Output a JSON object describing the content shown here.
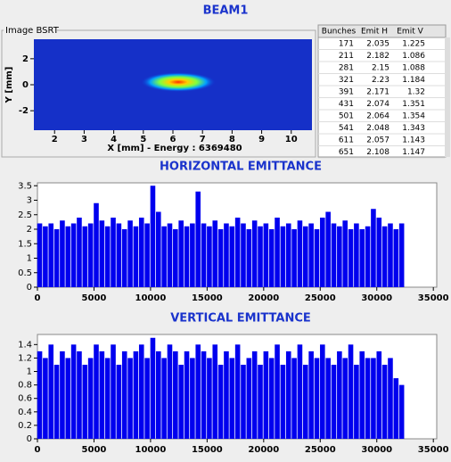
{
  "title": "BEAM1",
  "image_panel": {
    "title": "Image BSRT",
    "x_label": "X [mm] - Energy : 6369480",
    "y_label": "Y [mm]",
    "xlim": [
      1.3,
      10.7
    ],
    "ylim": [
      -3.5,
      3.5
    ],
    "xticks": [
      2,
      3,
      4,
      5,
      6,
      7,
      8,
      9,
      10
    ],
    "yticks": [
      2,
      0,
      -2
    ]
  },
  "table": {
    "columns": [
      "Bunches",
      "Emit H",
      "Emit V"
    ],
    "rows": [
      [
        "171",
        "2.035",
        "1.225"
      ],
      [
        "211",
        "2.182",
        "1.086"
      ],
      [
        "281",
        "2.15",
        "1.088"
      ],
      [
        "321",
        "2.23",
        "1.184"
      ],
      [
        "391",
        "2.171",
        "1.32"
      ],
      [
        "431",
        "2.074",
        "1.351"
      ],
      [
        "501",
        "2.064",
        "1.354"
      ],
      [
        "541",
        "2.048",
        "1.343"
      ],
      [
        "611",
        "2.057",
        "1.143"
      ],
      [
        "651",
        "2.108",
        "1.147"
      ]
    ]
  },
  "chart_data": [
    {
      "type": "bar",
      "title": "HORIZONTAL EMITTANCE",
      "color": "#0000ee",
      "x": [
        200,
        700,
        1200,
        1700,
        2200,
        2700,
        3200,
        3700,
        4200,
        4700,
        5200,
        5700,
        6200,
        6700,
        7200,
        7700,
        8200,
        8700,
        9200,
        9700,
        10200,
        10700,
        11200,
        11700,
        12200,
        12700,
        13200,
        13700,
        14200,
        14700,
        15200,
        15700,
        16200,
        16700,
        17200,
        17700,
        18200,
        18700,
        19200,
        19700,
        20200,
        20700,
        21200,
        21700,
        22200,
        22700,
        23200,
        23700,
        24200,
        24700,
        25200,
        25700,
        26200,
        26700,
        27200,
        27700,
        28200,
        28700,
        29200,
        29700,
        30200,
        30700,
        31200,
        31700,
        32200
      ],
      "values": [
        2.2,
        2.1,
        2.2,
        2.0,
        2.3,
        2.1,
        2.2,
        2.4,
        2.1,
        2.2,
        2.9,
        2.3,
        2.1,
        2.4,
        2.2,
        2.0,
        2.3,
        2.1,
        2.4,
        2.2,
        3.5,
        2.6,
        2.1,
        2.2,
        2.0,
        2.3,
        2.1,
        2.2,
        3.3,
        2.2,
        2.1,
        2.3,
        2.0,
        2.2,
        2.1,
        2.4,
        2.2,
        2.0,
        2.3,
        2.1,
        2.2,
        2.0,
        2.4,
        2.1,
        2.2,
        2.0,
        2.3,
        2.1,
        2.2,
        2.0,
        2.4,
        2.6,
        2.2,
        2.1,
        2.3,
        2.0,
        2.2,
        2.0,
        2.1,
        2.7,
        2.4,
        2.1,
        2.2,
        2.0,
        2.2
      ],
      "xlim": [
        0,
        35300
      ],
      "xticks": [
        0,
        5000,
        10000,
        15000,
        20000,
        25000,
        30000,
        35000
      ],
      "ylim": [
        0,
        3.6
      ],
      "yticks": [
        0,
        0.5,
        1,
        1.5,
        2,
        2.5,
        3,
        3.5
      ]
    },
    {
      "type": "bar",
      "title": "VERTICAL EMITTANCE",
      "color": "#0000ee",
      "x": [
        200,
        700,
        1200,
        1700,
        2200,
        2700,
        3200,
        3700,
        4200,
        4700,
        5200,
        5700,
        6200,
        6700,
        7200,
        7700,
        8200,
        8700,
        9200,
        9700,
        10200,
        10700,
        11200,
        11700,
        12200,
        12700,
        13200,
        13700,
        14200,
        14700,
        15200,
        15700,
        16200,
        16700,
        17200,
        17700,
        18200,
        18700,
        19200,
        19700,
        20200,
        20700,
        21200,
        21700,
        22200,
        22700,
        23200,
        23700,
        24200,
        24700,
        25200,
        25700,
        26200,
        26700,
        27200,
        27700,
        28200,
        28700,
        29200,
        29700,
        30200,
        30700,
        31200,
        31700,
        32200
      ],
      "values": [
        1.3,
        1.2,
        1.4,
        1.1,
        1.3,
        1.2,
        1.4,
        1.3,
        1.1,
        1.2,
        1.4,
        1.3,
        1.2,
        1.4,
        1.1,
        1.3,
        1.2,
        1.3,
        1.4,
        1.2,
        1.5,
        1.3,
        1.2,
        1.4,
        1.3,
        1.1,
        1.3,
        1.2,
        1.4,
        1.3,
        1.2,
        1.4,
        1.1,
        1.3,
        1.2,
        1.4,
        1.1,
        1.2,
        1.3,
        1.1,
        1.3,
        1.2,
        1.4,
        1.1,
        1.3,
        1.2,
        1.4,
        1.1,
        1.3,
        1.2,
        1.4,
        1.2,
        1.1,
        1.3,
        1.2,
        1.4,
        1.1,
        1.3,
        1.2,
        1.2,
        1.3,
        1.1,
        1.2,
        0.9,
        0.8
      ],
      "xlim": [
        0,
        35300
      ],
      "xticks": [
        0,
        5000,
        10000,
        15000,
        20000,
        25000,
        30000,
        35000
      ],
      "ylim": [
        0,
        1.55
      ],
      "yticks": [
        0,
        0.2,
        0.4,
        0.6,
        0.8,
        1,
        1.2,
        1.4
      ]
    }
  ]
}
